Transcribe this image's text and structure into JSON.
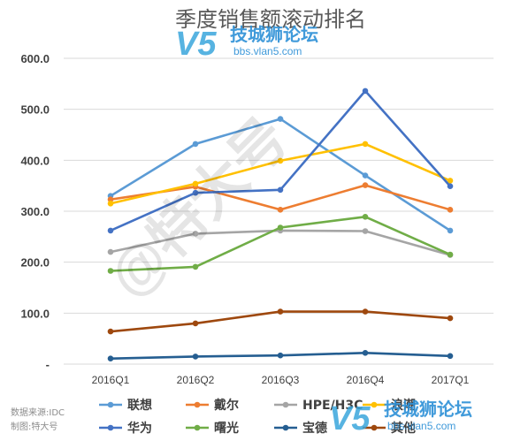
{
  "chart_data": {
    "type": "line",
    "title": "季度销售额滚动排名",
    "categories": [
      "2016Q1",
      "2016Q2",
      "2016Q3",
      "2016Q4",
      "2017Q1"
    ],
    "yticks": [
      "600.0",
      "500.0",
      "400.0",
      "300.0",
      "200.0",
      "100.0",
      "-"
    ],
    "ylim": [
      0,
      600
    ],
    "grid": true,
    "legend_position": "bottom",
    "series": [
      {
        "name": "联想",
        "color": "#5b9bd5",
        "values": [
          330,
          432,
          481,
          370,
          262
        ]
      },
      {
        "name": "戴尔",
        "color": "#ed7d31",
        "values": [
          323,
          348,
          303,
          351,
          303
        ]
      },
      {
        "name": "HPE/H3C",
        "color": "#a5a5a5",
        "values": [
          220,
          256,
          262,
          261,
          214
        ]
      },
      {
        "name": "浪潮",
        "color": "#ffc000",
        "values": [
          315,
          354,
          399,
          432,
          360
        ]
      },
      {
        "name": "华为",
        "color": "#4472c4",
        "values": [
          262,
          336,
          342,
          536,
          349
        ]
      },
      {
        "name": "曙光",
        "color": "#70ad47",
        "values": [
          183,
          191,
          268,
          289,
          215
        ]
      },
      {
        "name": "宝德",
        "color": "#255e91",
        "values": [
          11,
          15,
          17,
          22,
          16
        ]
      },
      {
        "name": "其他",
        "color": "#9e480e",
        "values": [
          64,
          80,
          103,
          103,
          90
        ]
      }
    ]
  },
  "source": {
    "line1": "数据来源:IDC",
    "line2": "制图:特大号"
  },
  "watermarks": {
    "top_text": "技城狮论坛",
    "top_url": "bbs.vlan5.com",
    "bottom_text": "技城狮论坛",
    "bottom_url": "bbs.vlan5.com",
    "logo_mark": "V5",
    "diagonal": "@特大号"
  }
}
